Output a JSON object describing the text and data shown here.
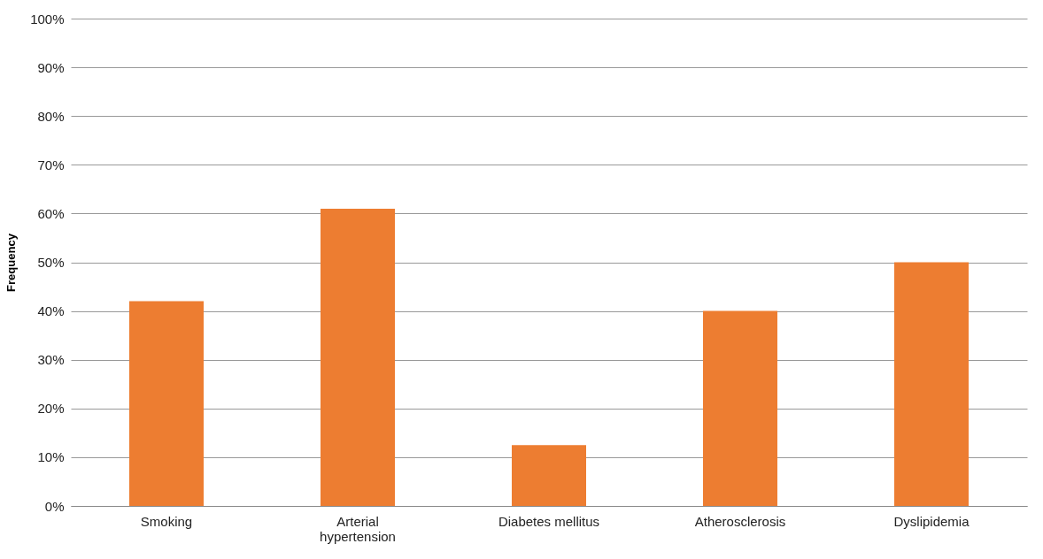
{
  "chart_data": {
    "type": "bar",
    "ylabel": "Frequency",
    "categories": [
      "Smoking",
      "Arterial hypertension",
      "Diabetes mellitus",
      "Atherosclerosis",
      "Dyslipidemia"
    ],
    "values": [
      42,
      61,
      12.5,
      40,
      50
    ],
    "color": "#ed7d31",
    "ylim": [
      0,
      100
    ],
    "yticks": [
      {
        "value": 0,
        "label": "0%"
      },
      {
        "value": 10,
        "label": "10%"
      },
      {
        "value": 20,
        "label": "20%"
      },
      {
        "value": 30,
        "label": "30%"
      },
      {
        "value": 40,
        "label": "40%"
      },
      {
        "value": 50,
        "label": "50%"
      },
      {
        "value": 60,
        "label": "60%"
      },
      {
        "value": 70,
        "label": "70%"
      },
      {
        "value": 80,
        "label": "80%"
      },
      {
        "value": 90,
        "label": "90%"
      },
      {
        "value": 100,
        "label": "100%"
      }
    ],
    "grid": "y"
  }
}
